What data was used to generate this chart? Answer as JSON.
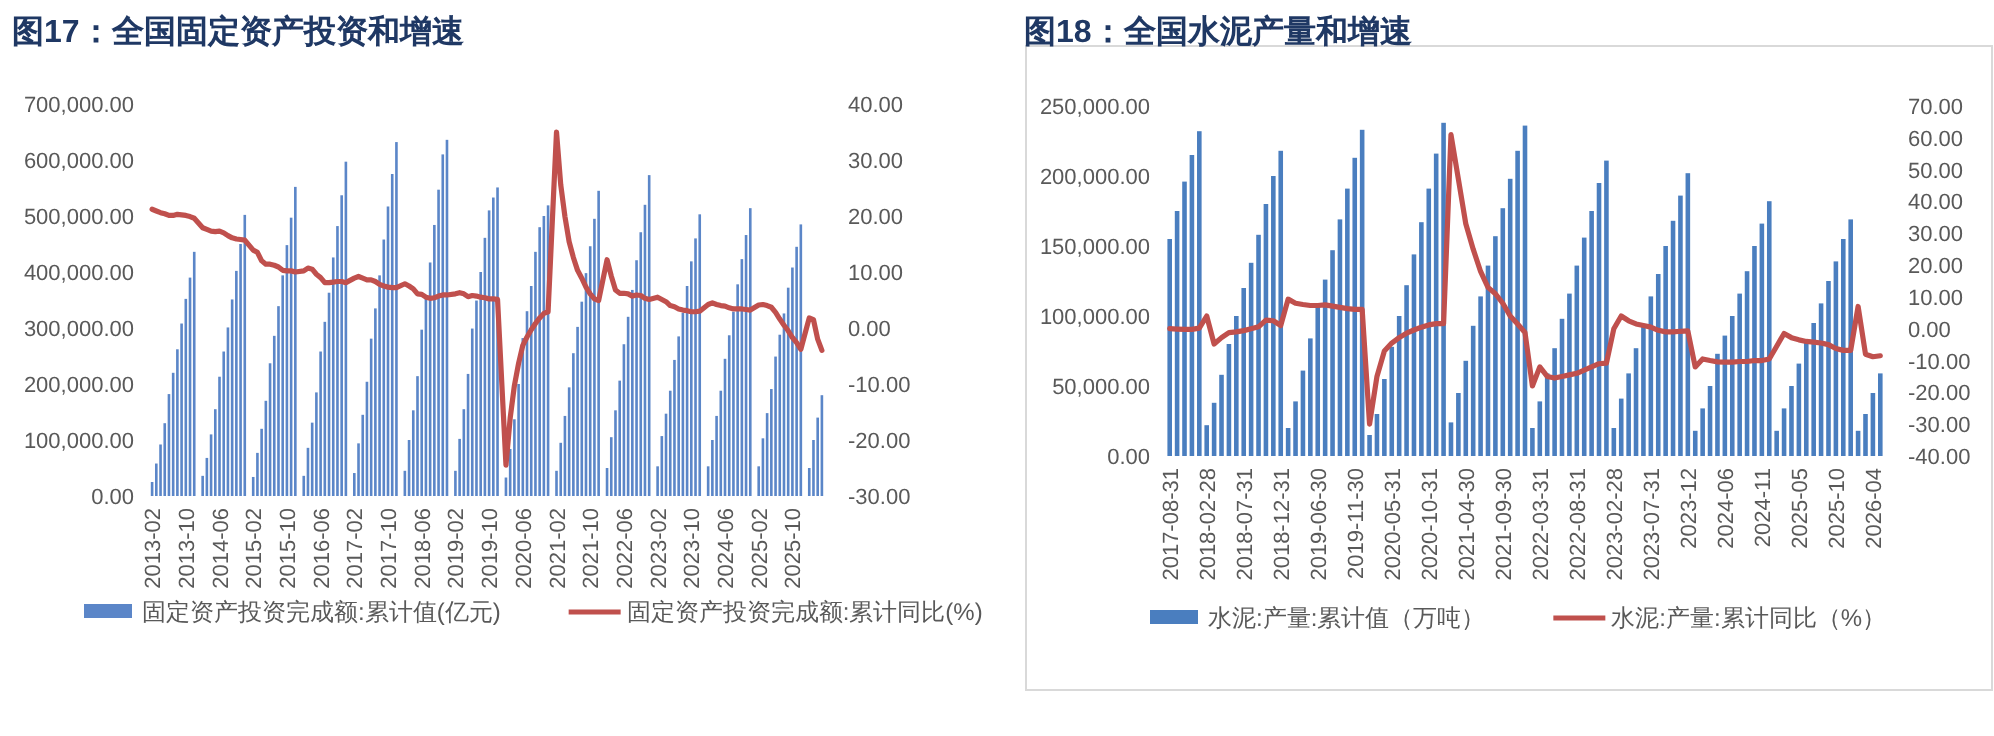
{
  "chart_data": [
    {
      "type": "bar",
      "title": "图17：全国固定资产投资和增速",
      "legend": "bottom",
      "categories": [
        "2013-02",
        null,
        null,
        null,
        null,
        null,
        null,
        null,
        "2013-10",
        null,
        null,
        null,
        null,
        null,
        null,
        null,
        "2014-06",
        null,
        null,
        null,
        null,
        null,
        null,
        null,
        "2015-02",
        null,
        null,
        null,
        null,
        null,
        null,
        null,
        "2015-10",
        null,
        null,
        null,
        null,
        null,
        null,
        null,
        "2016-06",
        null,
        null,
        null,
        null,
        null,
        null,
        null,
        "2017-02",
        null,
        null,
        null,
        null,
        null,
        null,
        null,
        "2017-10",
        null,
        null,
        null,
        null,
        null,
        null,
        null,
        "2018-06",
        null,
        null,
        null,
        null,
        null,
        null,
        null,
        "2019-02",
        null,
        null,
        null,
        null,
        null,
        null,
        null,
        "2019-10",
        null,
        null,
        null,
        null,
        null,
        null,
        null,
        "2020-06",
        null,
        null,
        null,
        null,
        null,
        null,
        null,
        "2021-02",
        null,
        null,
        null,
        null,
        null,
        null,
        null,
        "2021-10",
        null,
        null,
        null,
        null,
        null,
        null,
        null,
        "2022-06",
        null,
        null,
        null,
        null,
        null,
        null,
        null,
        "2023-02",
        null,
        null,
        null,
        null,
        null,
        null,
        null,
        "2023-10",
        null,
        null,
        null,
        null,
        null,
        null,
        null,
        "2024-06",
        null,
        null,
        null,
        null,
        null,
        null,
        null,
        "2025-02",
        null,
        null,
        null,
        null,
        null,
        null,
        null,
        "2025-10",
        null,
        null,
        null,
        null,
        null,
        null,
        null
      ],
      "ylim": [
        0,
        700000
      ],
      "yticks": [
        {
          "value": 0,
          "label": "0.00"
        },
        {
          "value": 100000,
          "label": "100,000.00"
        },
        {
          "value": 200000,
          "label": "200,000.00"
        },
        {
          "value": 300000,
          "label": "300,000.00"
        },
        {
          "value": 400000,
          "label": "400,000.00"
        },
        {
          "value": 500000,
          "label": "500,000.00"
        },
        {
          "value": 600000,
          "label": "600,000.00"
        },
        {
          "value": 700000,
          "label": "700,000.00"
        }
      ],
      "y2lim": [
        -30,
        40
      ],
      "y2ticks": [
        {
          "value": -30,
          "label": "-30.00"
        },
        {
          "value": -20,
          "label": "-20.00"
        },
        {
          "value": -10,
          "label": "-10.00"
        },
        {
          "value": 0,
          "label": "0.00"
        },
        {
          "value": 10,
          "label": "10.00"
        },
        {
          "value": 20,
          "label": "20.00"
        },
        {
          "value": 30,
          "label": "30.00"
        },
        {
          "value": 40,
          "label": "40.00"
        }
      ],
      "series": [
        {
          "name": "固定资产投资完成额:累计值(亿元)",
          "color": "#5b86c8",
          "values": [
            25000,
            58000,
            92000,
            130000,
            182000,
            220000,
            262000,
            308000,
            352000,
            390000,
            436000,
            null,
            36000,
            68000,
            110000,
            155000,
            213000,
            258000,
            301000,
            351000,
            402000,
            450000,
            502000,
            null,
            34000,
            77000,
            120000,
            170000,
            237000,
            286000,
            339000,
            394000,
            448000,
            497000,
            552000,
            null,
            36000,
            86000,
            131000,
            185000,
            258000,
            311000,
            363000,
            426000,
            482000,
            537000,
            597000,
            null,
            41000,
            94000,
            145000,
            204000,
            281000,
            335000,
            394000,
            458000,
            517000,
            575000,
            632000,
            null,
            45000,
            100000,
            153000,
            214000,
            297000,
            353000,
            417000,
            484000,
            547000,
            610000,
            636000,
            null,
            45000,
            102000,
            155000,
            218000,
            299000,
            349000,
            400000,
            461000,
            510000,
            533000,
            551000,
            null,
            33000,
            84000,
            137000,
            200000,
            282000,
            330000,
            375000,
            436000,
            480000,
            500000,
            519000,
            null,
            45000,
            95000,
            143000,
            194000,
            255000,
            302000,
            347000,
            398000,
            446000,
            495000,
            545000,
            null,
            50000,
            105000,
            153000,
            206000,
            271000,
            320000,
            368000,
            421000,
            471000,
            520000,
            573000,
            null,
            53000,
            107000,
            147000,
            188000,
            243000,
            285000,
            327000,
            375000,
            419000,
            460000,
            503000,
            null,
            53000,
            100000,
            143000,
            188000,
            245000,
            287000,
            329000,
            378000,
            423000,
            466000,
            514000,
            null,
            53000,
            103000,
            148000,
            191000,
            249000,
            288000,
            326000,
            372000,
            408000,
            445000,
            485000,
            null,
            50000,
            100000,
            140000,
            180000
          ]
        },
        {
          "name": "固定资产投资完成额:累计同比(%)",
          "type": "line",
          "axis": "y2",
          "color": "#c0504d",
          "values": [
            21.2,
            20.9,
            20.6,
            20.4,
            20.1,
            20.1,
            20.3,
            20.2,
            20.1,
            19.9,
            19.6,
            null,
            17.9,
            17.6,
            17.3,
            17.2,
            17.3,
            17.0,
            16.5,
            16.1,
            15.9,
            15.8,
            15.7,
            null,
            13.9,
            13.5,
            12.0,
            11.4,
            11.4,
            11.2,
            10.9,
            10.3,
            10.2,
            10.2,
            10.0,
            null,
            10.2,
            10.7,
            10.5,
            9.6,
            9.0,
            8.1,
            8.1,
            8.2,
            8.3,
            8.3,
            8.1,
            null,
            8.9,
            9.2,
            8.9,
            8.6,
            8.6,
            8.3,
            7.8,
            7.5,
            7.3,
            7.2,
            7.2,
            null,
            7.9,
            7.5,
            7.0,
            6.1,
            6.0,
            5.5,
            5.3,
            5.4,
            5.7,
            5.9,
            5.9,
            null,
            6.1,
            6.3,
            6.1,
            5.6,
            5.8,
            5.7,
            5.5,
            5.4,
            5.2,
            5.2,
            5.1,
            null,
            -24.5,
            -16.1,
            -10.3,
            -6.3,
            -3.1,
            -1.6,
            -0.3,
            0.8,
            1.8,
            2.6,
            2.9,
            null,
            35.0,
            25.6,
            19.9,
            15.4,
            12.6,
            10.3,
            8.9,
            7.3,
            6.1,
            5.2,
            4.9,
            null,
            12.2,
            9.3,
            6.8,
            6.2,
            6.2,
            6.1,
            5.7,
            5.9,
            5.8,
            5.3,
            5.1,
            null,
            5.5,
            5.1,
            4.7,
            4.0,
            3.8,
            3.4,
            3.2,
            3.1,
            2.9,
            2.9,
            3.0,
            null,
            4.2,
            4.5,
            4.2,
            4.0,
            3.9,
            3.6,
            3.4,
            3.4,
            3.4,
            3.3,
            3.2,
            null,
            4.1,
            4.2,
            4.0,
            3.7,
            2.8,
            1.6,
            0.5,
            -0.5,
            -1.7,
            -2.6,
            -3.8,
            null,
            1.8,
            1.5,
            -2.0,
            -4.0
          ]
        }
      ]
    },
    {
      "type": "bar",
      "title": "图18：全国水泥产量和增速",
      "legend": "bottom",
      "categories": [
        "2017-08-31",
        null,
        null,
        null,
        null,
        "2018-02-28",
        null,
        null,
        null,
        null,
        "2018-07-31",
        null,
        null,
        null,
        null,
        "2018-12-31",
        null,
        null,
        null,
        null,
        "2019-06-30",
        null,
        null,
        null,
        null,
        "2019-11-30",
        null,
        null,
        null,
        null,
        "2020-05-31",
        null,
        null,
        null,
        null,
        "2020-10-31",
        null,
        null,
        null,
        null,
        "2021-04-30",
        null,
        null,
        null,
        null,
        "2021-09-30",
        null,
        null,
        null,
        null,
        "2022-03-31",
        null,
        null,
        null,
        null,
        "2022-08-31",
        null,
        null,
        null,
        null,
        "2023-02-28",
        null,
        null,
        null,
        null,
        "2023-07-31",
        null,
        null,
        null,
        null,
        "2023-12",
        null,
        null,
        null,
        null,
        "2024-06",
        null,
        null,
        null,
        null,
        "2024-11",
        null,
        null,
        null,
        null,
        "2025-05",
        null,
        null,
        null,
        null,
        "2025-10",
        null,
        null,
        null,
        null,
        "2026-04",
        null
      ],
      "ylim": [
        0,
        250000
      ],
      "yticks": [
        {
          "value": 0,
          "label": "0.00"
        },
        {
          "value": 50000,
          "label": "50,000.00"
        },
        {
          "value": 100000,
          "label": "100,000.00"
        },
        {
          "value": 150000,
          "label": "150,000.00"
        },
        {
          "value": 200000,
          "label": "200,000.00"
        },
        {
          "value": 250000,
          "label": "250,000.00"
        }
      ],
      "y2lim": [
        -40,
        70
      ],
      "y2ticks": [
        {
          "value": -40,
          "label": "-40.00"
        },
        {
          "value": -30,
          "label": "-30.00"
        },
        {
          "value": -20,
          "label": "-20.00"
        },
        {
          "value": -10,
          "label": "-10.00"
        },
        {
          "value": 0,
          "label": "0.00"
        },
        {
          "value": 10,
          "label": "10.00"
        },
        {
          "value": 20,
          "label": "20.00"
        },
        {
          "value": 30,
          "label": "30.00"
        },
        {
          "value": 40,
          "label": "40.00"
        },
        {
          "value": 50,
          "label": "50.00"
        },
        {
          "value": 60,
          "label": "60.00"
        },
        {
          "value": 70,
          "label": "70.00"
        }
      ],
      "series": [
        {
          "name": "水泥:产量:累计值（万吨）",
          "color": "#4a7ebf",
          "values": [
            155000,
            175000,
            196000,
            215000,
            232000,
            22000,
            38000,
            58000,
            80000,
            100000,
            120000,
            138000,
            158000,
            180000,
            200000,
            218000,
            20000,
            39000,
            61000,
            84000,
            107000,
            126000,
            147000,
            169000,
            191000,
            213000,
            233000,
            15000,
            30000,
            55000,
            78000,
            100000,
            122000,
            144000,
            167000,
            191000,
            216000,
            238000,
            24000,
            45000,
            68000,
            93000,
            114000,
            136000,
            157000,
            177000,
            198000,
            218000,
            236000,
            20000,
            39000,
            59000,
            77000,
            98000,
            116000,
            136000,
            156000,
            175000,
            195000,
            211000,
            20000,
            41000,
            59000,
            77000,
            93000,
            114000,
            130000,
            150000,
            168000,
            186000,
            202000,
            18000,
            34000,
            50000,
            73000,
            86000,
            100000,
            116000,
            132000,
            150000,
            166000,
            182000,
            18000,
            34000,
            50000,
            66000,
            82000,
            95000,
            109000,
            125000,
            139000,
            155000,
            169000,
            18000,
            30000,
            45000,
            59000
          ]
        },
        {
          "name": "水泥:产量:累计同比（%）",
          "type": "line",
          "axis": "y2",
          "color": "#c0504d",
          "values": [
            0.0,
            -0.1,
            -0.2,
            -0.2,
            0.2,
            4.0,
            -4.8,
            -2.8,
            -1.2,
            -1.0,
            -0.6,
            0.0,
            0.6,
            2.7,
            2.5,
            1.0,
            9.3,
            8.0,
            7.6,
            7.3,
            7.3,
            7.5,
            7.1,
            6.7,
            6.3,
            6.1,
            6.1,
            -30.0,
            -15.0,
            -7.0,
            -4.5,
            -2.8,
            -1.4,
            -0.4,
            0.5,
            1.2,
            1.6,
            1.6,
            61.0,
            47.0,
            33.0,
            25.0,
            18.0,
            13.0,
            11.0,
            8.0,
            4.0,
            1.5,
            -1.2,
            -18.0,
            -12.0,
            -15.0,
            -15.5,
            -15.0,
            -14.5,
            -14.0,
            -13.0,
            -12.0,
            -11.0,
            -10.8,
            0.0,
            4.0,
            2.5,
            1.5,
            1.0,
            0.5,
            -0.5,
            -1.0,
            -1.0,
            -0.8,
            -0.7,
            -12.0,
            -9.5,
            -10.0,
            -10.4,
            -10.5,
            -10.5,
            -10.3,
            -10.3,
            -10.0,
            -10.0,
            -9.5,
            -5.5,
            -1.5,
            -2.8,
            -3.5,
            -4.0,
            -4.2,
            -4.5,
            -5.0,
            -6.2,
            -6.8,
            -6.8,
            7.0,
            -8.0,
            -8.8,
            -8.5
          ]
        }
      ]
    }
  ]
}
